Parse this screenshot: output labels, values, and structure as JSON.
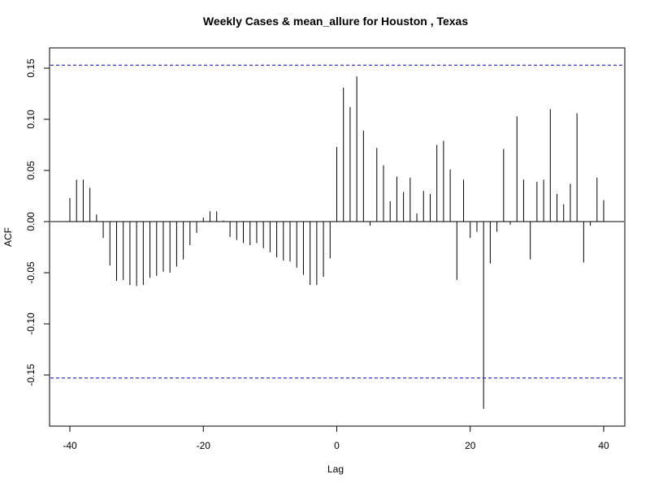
{
  "chart_data": {
    "type": "bar",
    "title": "Weekly Cases & mean_allure for Houston , Texas",
    "xlabel": "Lag",
    "ylabel": "ACF",
    "xlim": [
      -40,
      40
    ],
    "ylim": [
      -0.18,
      0.16
    ],
    "x_ticks": [
      -40,
      -20,
      0,
      20,
      40
    ],
    "x_tick_labels": [
      "-40",
      "-20",
      "0",
      "20",
      "40"
    ],
    "y_ticks": [
      -0.15,
      -0.1,
      -0.05,
      0.0,
      0.05,
      0.1,
      0.15
    ],
    "y_tick_labels": [
      "-0.15",
      "-0.10",
      "-0.05",
      "0.00",
      "0.05",
      "0.10",
      "0.15"
    ],
    "confidence_bound": 0.153,
    "colors": {
      "spikes": "#000000",
      "bounds": "#0000cc",
      "frame": "#000000"
    },
    "lags": [
      -40,
      -39,
      -38,
      -37,
      -36,
      -35,
      -34,
      -33,
      -32,
      -31,
      -30,
      -29,
      -28,
      -27,
      -26,
      -25,
      -24,
      -23,
      -22,
      -21,
      -20,
      -19,
      -18,
      -17,
      -16,
      -15,
      -14,
      -13,
      -12,
      -11,
      -10,
      -9,
      -8,
      -7,
      -6,
      -5,
      -4,
      -3,
      -2,
      -1,
      0,
      1,
      2,
      3,
      4,
      5,
      6,
      7,
      8,
      9,
      10,
      11,
      12,
      13,
      14,
      15,
      16,
      17,
      18,
      19,
      20,
      21,
      22,
      23,
      24,
      25,
      26,
      27,
      28,
      29,
      30,
      31,
      32,
      33,
      34,
      35,
      36,
      37,
      38,
      39,
      40
    ],
    "values": [
      0.023,
      0.041,
      0.041,
      0.033,
      0.007,
      -0.016,
      -0.043,
      -0.058,
      -0.057,
      -0.062,
      -0.063,
      -0.062,
      -0.055,
      -0.053,
      -0.049,
      -0.05,
      -0.044,
      -0.037,
      -0.023,
      -0.011,
      0.004,
      0.01,
      0.01,
      0.001,
      -0.015,
      -0.018,
      -0.021,
      -0.023,
      -0.021,
      -0.026,
      -0.03,
      -0.035,
      -0.038,
      -0.039,
      -0.045,
      -0.052,
      -0.062,
      -0.062,
      -0.054,
      -0.036,
      0.073,
      0.131,
      0.112,
      0.142,
      0.089,
      -0.004,
      0.072,
      0.055,
      0.02,
      0.044,
      0.029,
      0.043,
      0.008,
      0.03,
      0.027,
      0.075,
      0.079,
      0.051,
      -0.057,
      0.041,
      -0.016,
      -0.01,
      -0.183,
      -0.041,
      -0.01,
      0.071,
      -0.003,
      0.103,
      0.041,
      -0.037,
      0.039,
      0.041,
      0.11,
      0.027,
      0.017,
      0.037,
      0.106,
      -0.04,
      -0.004,
      0.043,
      0.021
    ]
  }
}
